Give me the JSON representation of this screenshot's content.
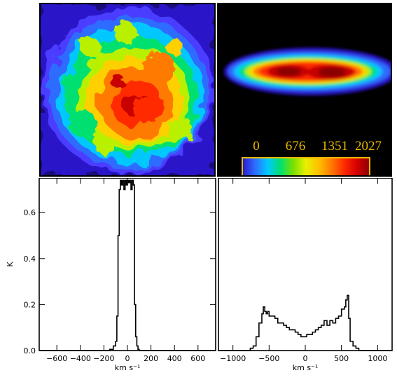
{
  "colorbar": {
    "tick_labels": [
      "0",
      "676",
      "1351",
      "2027"
    ],
    "label_color": "#e8b800",
    "frame_color": "#e8b800",
    "colors": [
      "#2a17c8",
      "#2e6cff",
      "#00c8ff",
      "#00e070",
      "#7ae000",
      "#e8f000",
      "#ffc000",
      "#ff7a00",
      "#ff2a00",
      "#d40000",
      "#8a0000"
    ]
  },
  "map": {
    "outer_color": "#2a17c8",
    "colormap_levels": [
      "#4b3cff",
      "#2e6cff",
      "#00c8ff",
      "#00e070",
      "#b8f000",
      "#ffd000",
      "#ff7a00",
      "#ff2a00",
      "#c80000"
    ]
  },
  "chart_data": [
    {
      "type": "line",
      "style": "step",
      "ylabel": "K",
      "xlabel": "km s⁻¹",
      "xlim": [
        -750,
        750
      ],
      "ylim": [
        0,
        0.75
      ],
      "xticks": [
        -600,
        -400,
        -200,
        0,
        200,
        400,
        600
      ],
      "xtick_labels": [
        "−600",
        "−400",
        "−200",
        "0",
        "200",
        "400",
        "600"
      ],
      "yticks": [
        0.0,
        0.2,
        0.4,
        0.6
      ],
      "ytick_labels": [
        "0.0",
        "0.2",
        "0.4",
        "0.6"
      ],
      "x": [
        -750,
        -200,
        -150,
        -120,
        -100,
        -90,
        -80,
        -70,
        -60,
        -50,
        -40,
        -30,
        -20,
        -10,
        0,
        10,
        20,
        30,
        40,
        50,
        60,
        70,
        80,
        90,
        100,
        110,
        120,
        750
      ],
      "y": [
        0.0,
        0.0,
        0.005,
        0.02,
        0.04,
        0.15,
        0.5,
        0.7,
        0.74,
        0.72,
        0.74,
        0.7,
        0.74,
        0.72,
        0.74,
        0.73,
        0.74,
        0.7,
        0.74,
        0.72,
        0.2,
        0.06,
        0.02,
        0.005,
        0.0,
        0.0,
        0.0,
        0.0
      ]
    },
    {
      "type": "line",
      "style": "step",
      "ylabel": "",
      "xlabel": "km s⁻¹",
      "xlim": [
        -1200,
        1200
      ],
      "ylim": [
        0,
        0.75
      ],
      "xticks": [
        -1000,
        -500,
        0,
        500,
        1000
      ],
      "xtick_labels": [
        "−1000",
        "−500",
        "0",
        "500",
        "1000"
      ],
      "yticks": [],
      "x": [
        -1200,
        -800,
        -760,
        -720,
        -680,
        -640,
        -600,
        -580,
        -560,
        -540,
        -520,
        -500,
        -460,
        -420,
        -380,
        -340,
        -300,
        -260,
        -220,
        -180,
        -140,
        -100,
        -60,
        -20,
        20,
        60,
        100,
        140,
        180,
        220,
        260,
        300,
        340,
        380,
        420,
        460,
        500,
        540,
        560,
        580,
        600,
        620,
        660,
        700,
        740,
        1200
      ],
      "y": [
        0.0,
        0.0,
        0.01,
        0.02,
        0.06,
        0.12,
        0.16,
        0.19,
        0.17,
        0.16,
        0.17,
        0.15,
        0.15,
        0.14,
        0.12,
        0.12,
        0.11,
        0.1,
        0.09,
        0.09,
        0.08,
        0.07,
        0.06,
        0.06,
        0.07,
        0.07,
        0.08,
        0.09,
        0.1,
        0.11,
        0.13,
        0.11,
        0.13,
        0.12,
        0.14,
        0.15,
        0.18,
        0.19,
        0.22,
        0.24,
        0.14,
        0.04,
        0.02,
        0.01,
        0.0,
        0.0
      ]
    }
  ]
}
